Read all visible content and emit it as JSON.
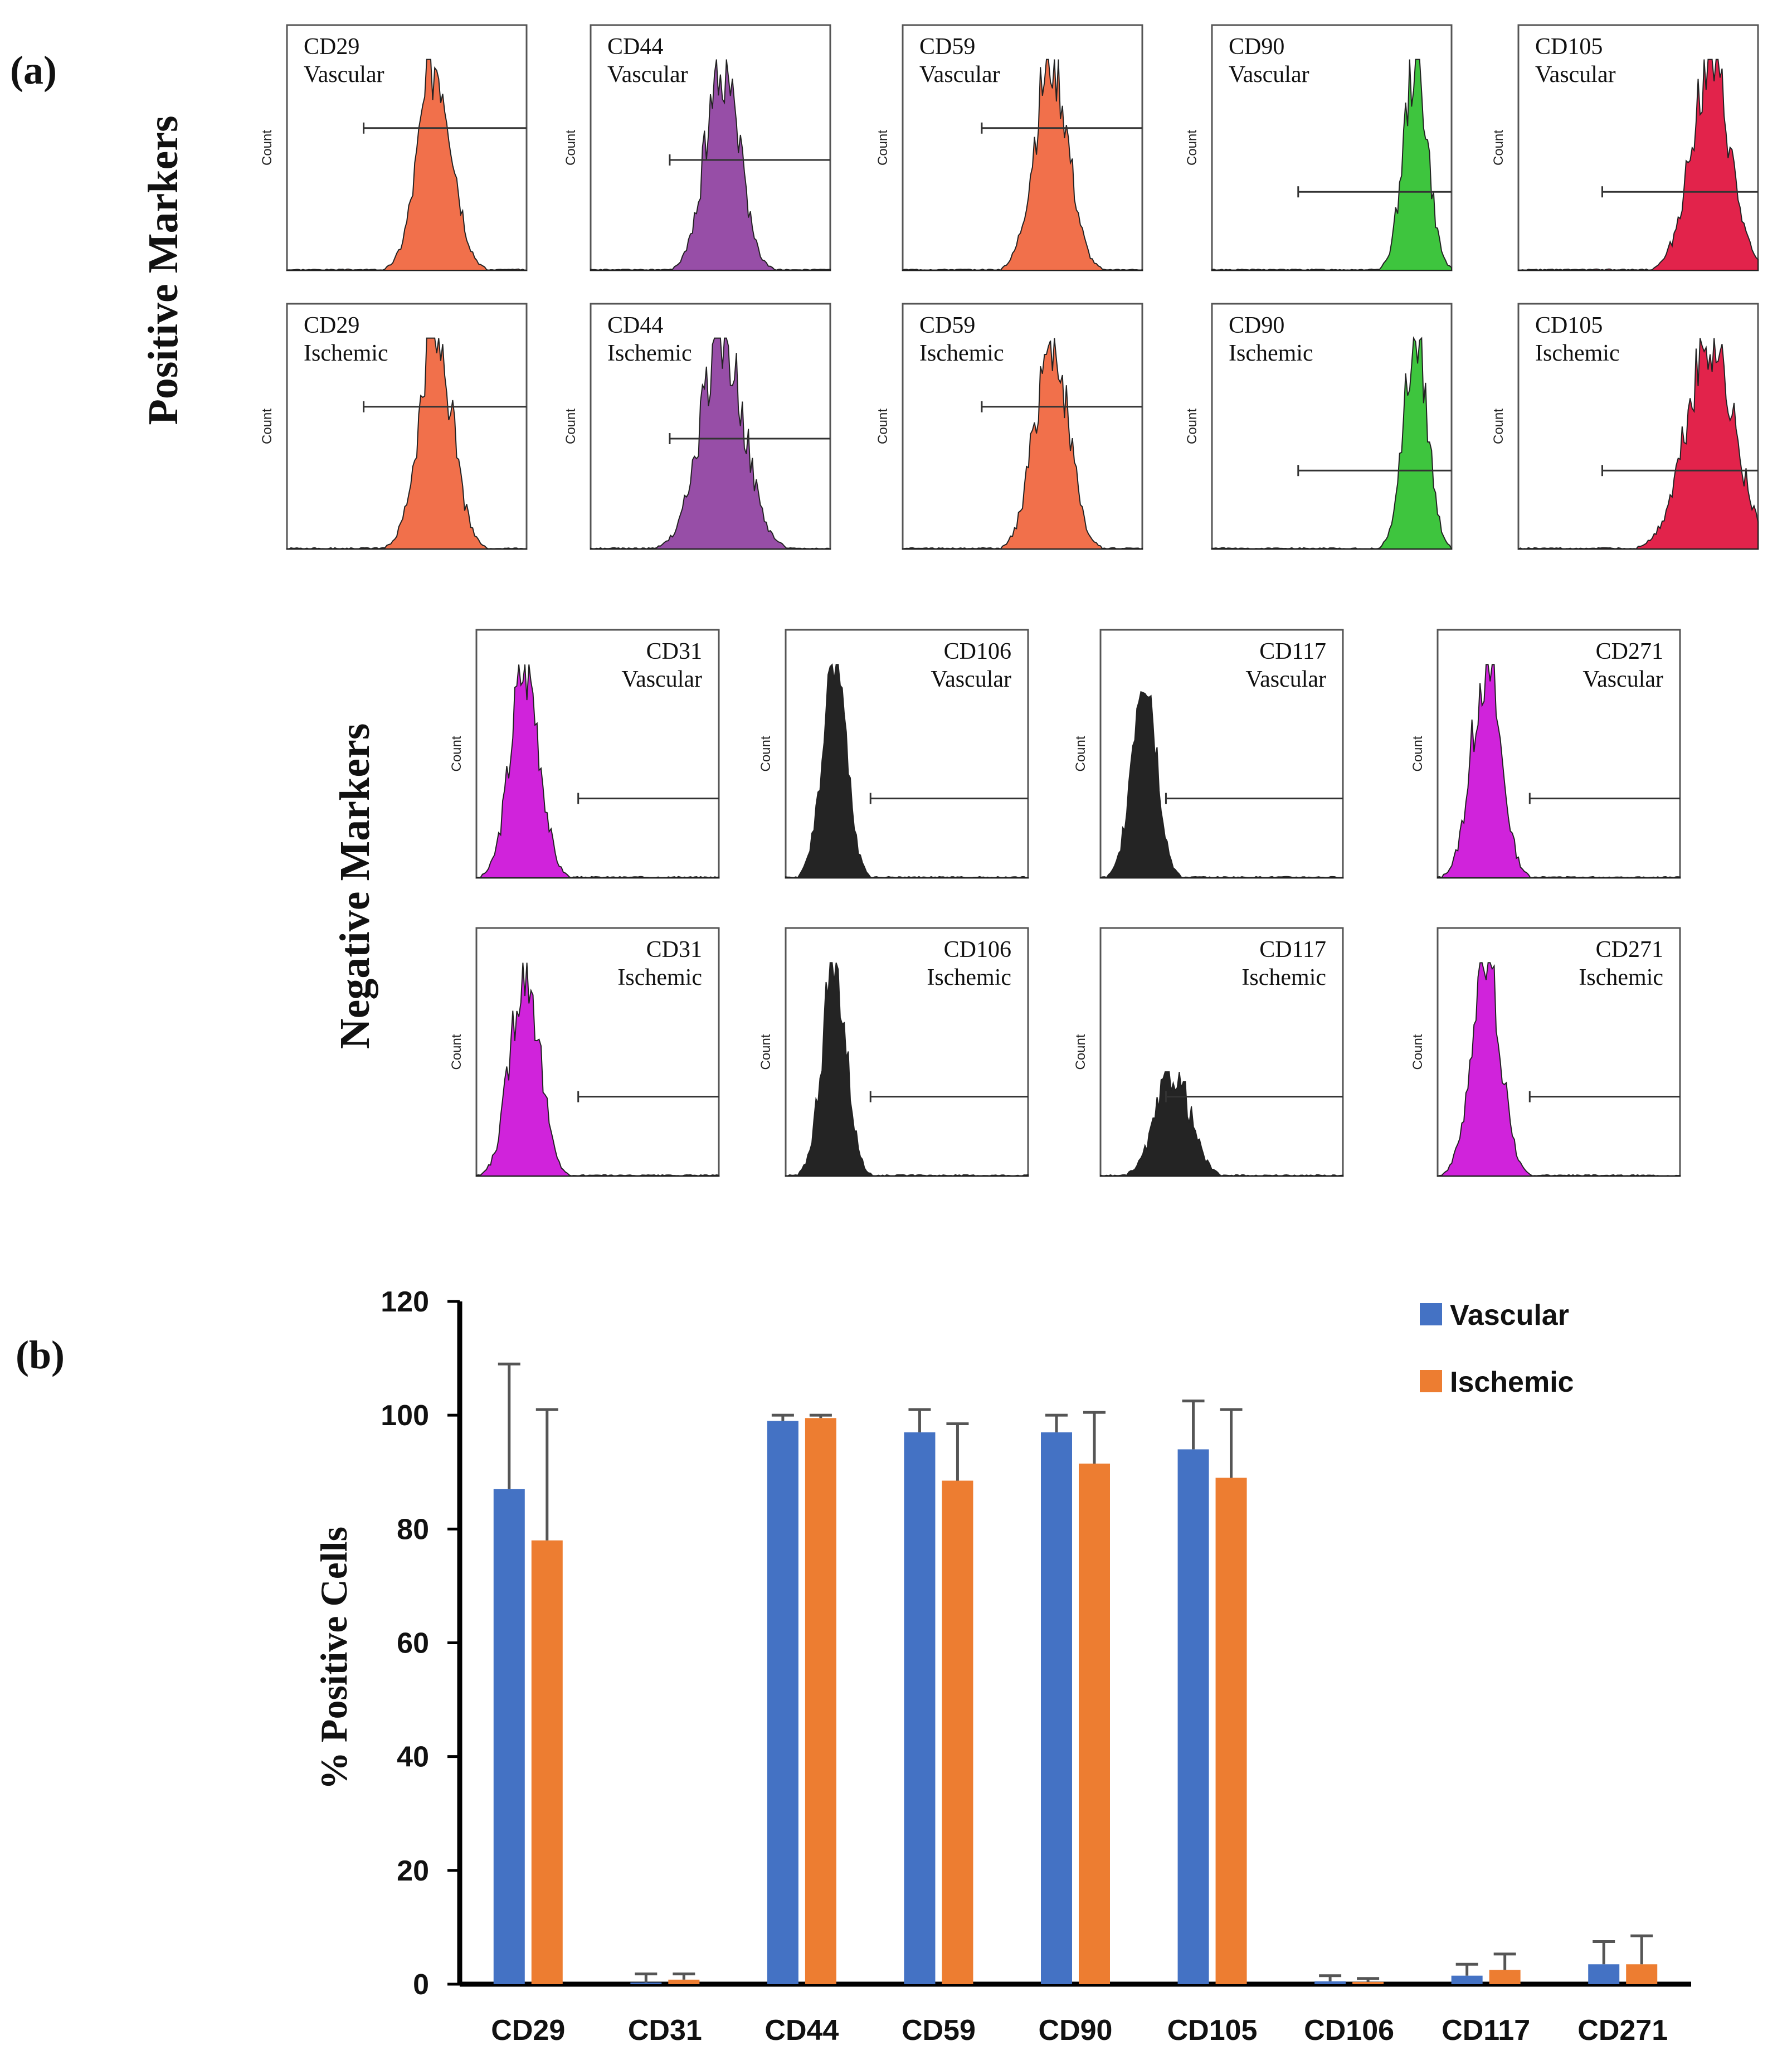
{
  "panel_a_label": "(a)",
  "panel_b_label": "(b)",
  "positive_label": "Positive Markers",
  "negative_label": "Negative Markers",
  "hist_ylabel": "Count",
  "colors": {
    "CD29": "#f0643c",
    "CD44": "#8e3fa0",
    "CD59": "#f0643c",
    "CD90": "#2ec02e",
    "CD105": "#e0103c",
    "CD31": "#cc10d8",
    "CD106": "#111111",
    "CD117": "#111111",
    "CD271": "#cc10d8",
    "vascular_bar": "#4472c4",
    "ischemic_bar": "#ed7d31"
  },
  "histograms_positive": [
    {
      "marker": "CD29",
      "condition": "Vascular"
    },
    {
      "marker": "CD44",
      "condition": "Vascular"
    },
    {
      "marker": "CD59",
      "condition": "Vascular"
    },
    {
      "marker": "CD90",
      "condition": "Vascular"
    },
    {
      "marker": "CD105",
      "condition": "Vascular"
    },
    {
      "marker": "CD29",
      "condition": "Ischemic"
    },
    {
      "marker": "CD44",
      "condition": "Ischemic"
    },
    {
      "marker": "CD59",
      "condition": "Ischemic"
    },
    {
      "marker": "CD90",
      "condition": "Ischemic"
    },
    {
      "marker": "CD105",
      "condition": "Ischemic"
    }
  ],
  "histograms_negative": [
    {
      "marker": "CD31",
      "condition": "Vascular"
    },
    {
      "marker": "CD106",
      "condition": "Vascular"
    },
    {
      "marker": "CD117",
      "condition": "Vascular"
    },
    {
      "marker": "CD271",
      "condition": "Vascular"
    },
    {
      "marker": "CD31",
      "condition": "Ischemic"
    },
    {
      "marker": "CD106",
      "condition": "Ischemic"
    },
    {
      "marker": "CD117",
      "condition": "Ischemic"
    },
    {
      "marker": "CD271",
      "condition": "Ischemic"
    }
  ],
  "chart_data": {
    "type": "bar",
    "title": "",
    "xlabel": "",
    "ylabel": "% Positive Cells",
    "ylim": [
      0,
      120
    ],
    "yticks": [
      0,
      20,
      40,
      60,
      80,
      100,
      120
    ],
    "categories": [
      "CD29",
      "CD31",
      "CD44",
      "CD59",
      "CD90",
      "CD105",
      "CD106",
      "CD117",
      "CD271"
    ],
    "series": [
      {
        "name": "Vascular",
        "values": [
          87,
          0.3,
          99,
          97,
          97,
          94,
          0.5,
          1.5,
          3.5
        ],
        "errors": [
          22,
          1.5,
          1,
          4,
          3,
          8.5,
          1,
          2,
          4
        ]
      },
      {
        "name": "Ischemic",
        "values": [
          78,
          0.8,
          99.5,
          88.5,
          91.5,
          89,
          0.4,
          2.5,
          3.5
        ],
        "errors": [
          23,
          1,
          0.5,
          10,
          9,
          12,
          0.6,
          2.8,
          5
        ]
      }
    ],
    "legend": "top-right"
  }
}
